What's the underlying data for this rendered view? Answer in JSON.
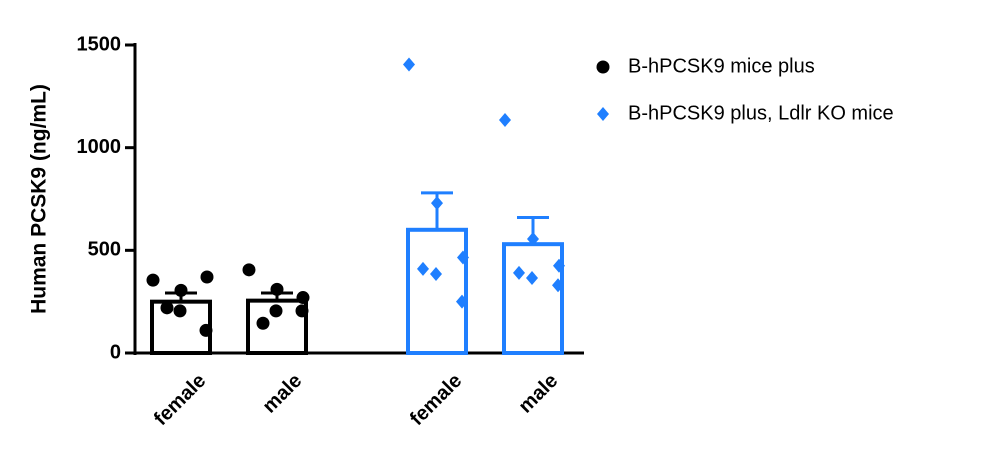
{
  "chart_data": {
    "type": "bar",
    "y_label": "Human PCSK9 (ng/mL)",
    "categories": [
      "female",
      "male"
    ],
    "ylim": [
      0,
      1500
    ],
    "yticks": [
      0,
      500,
      1000,
      1500
    ],
    "series": [
      {
        "name": "B-hPCSK9 mice plus",
        "color": "#000000",
        "marker": "circle",
        "values": [
          250,
          255
        ],
        "errors": [
          42,
          37
        ],
        "points": [
          [
            355,
            305,
            370,
            220,
            205,
            110
          ],
          [
            405,
            310,
            270,
            145,
            205,
            205
          ]
        ]
      },
      {
        "name": "B-hPCSK9 plus, Ldlr KO mice",
        "color": "#1f7fff",
        "marker": "diamond",
        "values": [
          600,
          530
        ],
        "errors": [
          180,
          130
        ],
        "points": [
          [
            1405,
            730,
            465,
            410,
            385,
            250
          ],
          [
            1135,
            555,
            425,
            390,
            365,
            330
          ]
        ]
      }
    ]
  }
}
